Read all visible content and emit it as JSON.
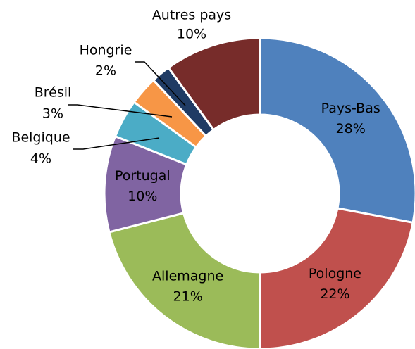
{
  "chart_data": {
    "type": "donut",
    "categories": [
      "Pays-Bas",
      "Pologne",
      "Allemagne",
      "Portugal",
      "Belgique",
      "Brésil",
      "Hongrie",
      "Autres pays"
    ],
    "values": [
      28,
      22,
      21,
      10,
      4,
      3,
      2,
      10
    ],
    "value_labels": [
      "28%",
      "22%",
      "21%",
      "10%",
      "4%",
      "3%",
      "2%",
      "10%"
    ],
    "colors": [
      "#4f81bd",
      "#c0504d",
      "#9bbb59",
      "#8064a2",
      "#4bacc6",
      "#f79646",
      "#1f3b64",
      "#772c2a"
    ]
  }
}
